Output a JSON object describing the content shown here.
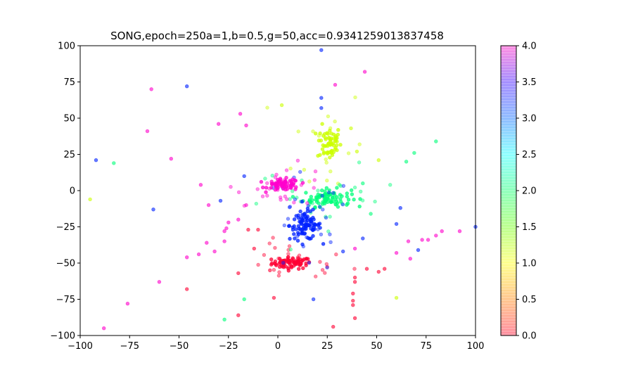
{
  "chart_data": {
    "type": "scatter",
    "title": "SONG,epoch=250a=1,b=0.5,g=50,acc=0.9341259013837458",
    "xlabel": "",
    "ylabel": "",
    "xlim": [
      -100,
      100
    ],
    "ylim": [
      -100,
      100
    ],
    "xticks": [
      "-100",
      "-75",
      "-50",
      "-25",
      "0",
      "25",
      "50",
      "75",
      "100"
    ],
    "yticks": [
      "-100",
      "-75",
      "-50",
      "-25",
      "0",
      "25",
      "50",
      "75",
      "100"
    ],
    "grid": false,
    "colorbar": {
      "colormap": "gist_rainbow",
      "range": [
        0,
        4
      ],
      "ticks": [
        "0.0",
        "0.5",
        "1.0",
        "1.5",
        "2.0",
        "2.5",
        "3.0",
        "3.5",
        "4.0"
      ],
      "stops": [
        "#ff0029",
        "#ff8000",
        "#ffff00",
        "#66ff00",
        "#00ff66",
        "#00ffff",
        "#0066ff",
        "#3300ff",
        "#ff00bf"
      ]
    },
    "colors": {
      "0": "#ff0033",
      "1": "#ccff00",
      "2": "#00ff7a",
      "3": "#0022ff",
      "4": "#ff00cc"
    },
    "clusters": [
      {
        "label": 0,
        "center": [
          7,
          -50
        ],
        "spread": [
          5,
          2
        ],
        "count": 70
      },
      {
        "label": 1,
        "center": [
          26,
          33
        ],
        "spread": [
          3,
          6
        ],
        "count": 60
      },
      {
        "label": 2,
        "center": [
          25,
          -5
        ],
        "spread": [
          6,
          3
        ],
        "count": 80
      },
      {
        "label": 3,
        "center": [
          14,
          -24
        ],
        "spread": [
          4,
          5
        ],
        "count": 90
      },
      {
        "label": 4,
        "center": [
          3,
          4
        ],
        "spread": [
          4,
          2
        ],
        "count": 70
      }
    ],
    "scattered_points": [
      {
        "x": 22,
        "y": 97,
        "label": 3
      },
      {
        "x": 44,
        "y": 82,
        "label": 4
      },
      {
        "x": 29,
        "y": 73,
        "label": 4
      },
      {
        "x": -64,
        "y": 70,
        "label": 4
      },
      {
        "x": -46,
        "y": 72,
        "label": 3
      },
      {
        "x": 22,
        "y": 64,
        "label": 3
      },
      {
        "x": 22,
        "y": 57,
        "label": 3
      },
      {
        "x": 2,
        "y": 59,
        "label": 1
      },
      {
        "x": -19,
        "y": 53,
        "label": 4
      },
      {
        "x": -30,
        "y": 46,
        "label": 4
      },
      {
        "x": -16,
        "y": 45,
        "label": 4
      },
      {
        "x": -66,
        "y": 41,
        "label": 4
      },
      {
        "x": 37,
        "y": 43,
        "label": 1
      },
      {
        "x": 40,
        "y": 27,
        "label": 1
      },
      {
        "x": 69,
        "y": 26,
        "label": 2
      },
      {
        "x": 80,
        "y": 34,
        "label": 2
      },
      {
        "x": -92,
        "y": 21,
        "label": 3
      },
      {
        "x": -83,
        "y": 19,
        "label": 2
      },
      {
        "x": -54,
        "y": 22,
        "label": 4
      },
      {
        "x": 51,
        "y": 21,
        "label": 1
      },
      {
        "x": 65,
        "y": 20,
        "label": 2
      },
      {
        "x": -17,
        "y": 10,
        "label": 3
      },
      {
        "x": -39,
        "y": 4,
        "label": 4
      },
      {
        "x": 43,
        "y": 5,
        "label": 2
      },
      {
        "x": -95,
        "y": -6,
        "label": 1
      },
      {
        "x": -29,
        "y": -7,
        "label": 3
      },
      {
        "x": -35,
        "y": -10,
        "label": 4
      },
      {
        "x": -63,
        "y": -13,
        "label": 3
      },
      {
        "x": 62,
        "y": -12,
        "label": 3
      },
      {
        "x": 47,
        "y": -16,
        "label": 2
      },
      {
        "x": 60,
        "y": -23,
        "label": 3
      },
      {
        "x": 80,
        "y": -31,
        "label": 4
      },
      {
        "x": 83,
        "y": -28,
        "label": 4
      },
      {
        "x": 92,
        "y": -28,
        "label": 4
      },
      {
        "x": 100,
        "y": -25,
        "label": 3
      },
      {
        "x": 73,
        "y": -34,
        "label": 4
      },
      {
        "x": 76,
        "y": -34,
        "label": 4
      },
      {
        "x": 66,
        "y": -35,
        "label": 4
      },
      {
        "x": 71,
        "y": -41,
        "label": 3
      },
      {
        "x": 60,
        "y": -43,
        "label": 4
      },
      {
        "x": 67,
        "y": -47,
        "label": 4
      },
      {
        "x": -20,
        "y": -20,
        "label": 4
      },
      {
        "x": -25,
        "y": -22,
        "label": 4
      },
      {
        "x": -27,
        "y": -28,
        "label": 4
      },
      {
        "x": -27,
        "y": -35,
        "label": 4
      },
      {
        "x": -36,
        "y": -36,
        "label": 4
      },
      {
        "x": -40,
        "y": -44,
        "label": 4
      },
      {
        "x": -46,
        "y": -46,
        "label": 4
      },
      {
        "x": -32,
        "y": -42,
        "label": 4
      },
      {
        "x": -60,
        "y": -63,
        "label": 4
      },
      {
        "x": -46,
        "y": -68,
        "label": 0
      },
      {
        "x": -76,
        "y": -78,
        "label": 4
      },
      {
        "x": -88,
        "y": -95,
        "label": 4
      },
      {
        "x": -27,
        "y": -89,
        "label": 2
      },
      {
        "x": -20,
        "y": -86,
        "label": 0
      },
      {
        "x": -17,
        "y": -75,
        "label": 2
      },
      {
        "x": -2,
        "y": -74,
        "label": 0
      },
      {
        "x": 18,
        "y": -75,
        "label": 3
      },
      {
        "x": 28,
        "y": -94,
        "label": 0
      },
      {
        "x": 39,
        "y": -60,
        "label": 0
      },
      {
        "x": 39,
        "y": -63,
        "label": 0
      },
      {
        "x": 38,
        "y": -71,
        "label": 0
      },
      {
        "x": 38,
        "y": -76,
        "label": 0
      },
      {
        "x": 38,
        "y": -79,
        "label": 0
      },
      {
        "x": 39,
        "y": -88,
        "label": 0
      },
      {
        "x": 60,
        "y": -74,
        "label": 1
      },
      {
        "x": 51,
        "y": -56,
        "label": 0
      },
      {
        "x": 54,
        "y": -54,
        "label": 0
      },
      {
        "x": 45,
        "y": -54,
        "label": 0
      },
      {
        "x": 33,
        "y": -42,
        "label": 3
      },
      {
        "x": 43,
        "y": -33,
        "label": 3
      },
      {
        "x": 39,
        "y": -40,
        "label": 4
      },
      {
        "x": -10,
        "y": -27,
        "label": 0
      },
      {
        "x": -15,
        "y": -27,
        "label": 0
      },
      {
        "x": -12,
        "y": -40,
        "label": 0
      },
      {
        "x": -4,
        "y": -55,
        "label": 0
      },
      {
        "x": -20,
        "y": -57,
        "label": 0
      },
      {
        "x": -16,
        "y": -10,
        "label": 4
      },
      {
        "x": -26,
        "y": -26,
        "label": 4
      }
    ]
  }
}
